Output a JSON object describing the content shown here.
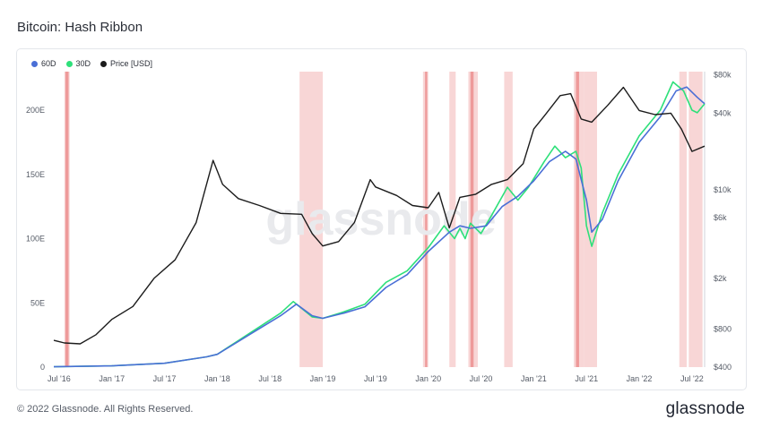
{
  "page": {
    "title": "Bitcoin: Hash Ribbon",
    "copyright": "© 2022 Glassnode. All Rights Reserved.",
    "brand": "glassnode",
    "watermark": "glassnode"
  },
  "colors": {
    "hr60": "#4a6fd6",
    "hr30": "#2ee07a",
    "price": "#1c1c1c",
    "band_light": "#f8d6d6",
    "band_dark": "#ee9a9a"
  },
  "chart_data": {
    "type": "line",
    "title": "Bitcoin: Hash Ribbon",
    "left_axis": {
      "ticks": [
        0,
        50,
        100,
        150,
        200
      ],
      "tick_labels": [
        "0",
        "50E",
        "100E",
        "150E",
        "200E"
      ],
      "ylim": [
        0,
        230
      ]
    },
    "right_axis": {
      "scale": "log",
      "ticks": [
        400,
        800,
        2000,
        6000,
        10000,
        40000,
        80000
      ],
      "tick_labels": [
        "$400",
        "$800",
        "$2k",
        "$6k",
        "$10k",
        "$40k",
        "$80k"
      ],
      "ylim": [
        400,
        85000
      ]
    },
    "x_ticks": [
      "Jul '16",
      "Jan '17",
      "Jul '17",
      "Jan '18",
      "Jul '18",
      "Jan '19",
      "Jul '19",
      "Jan '20",
      "Jul '20",
      "Jan '21",
      "Jul '21",
      "Jan '22",
      "Jul '22"
    ],
    "x_tick_values": [
      2016.5,
      2017.0,
      2017.5,
      2018.0,
      2018.5,
      2019.0,
      2019.5,
      2020.0,
      2020.5,
      2021.0,
      2021.5,
      2022.0,
      2022.5
    ],
    "xlim": [
      2016.45,
      2022.62
    ],
    "legend": [
      "60D",
      "30D",
      "Price [USD]"
    ],
    "series": [
      {
        "name": "60D",
        "axis": "left",
        "x": [
          2016.45,
          2017.0,
          2017.5,
          2017.9,
          2018.0,
          2018.3,
          2018.6,
          2018.75,
          2018.9,
          2019.0,
          2019.2,
          2019.4,
          2019.6,
          2019.8,
          2020.0,
          2020.2,
          2020.3,
          2020.4,
          2020.55,
          2020.7,
          2020.85,
          2021.0,
          2021.15,
          2021.3,
          2021.4,
          2021.5,
          2021.55,
          2021.65,
          2021.8,
          2022.0,
          2022.2,
          2022.35,
          2022.45,
          2022.55,
          2022.62
        ],
        "values": [
          0.3,
          1,
          3,
          8,
          10,
          25,
          40,
          49,
          40,
          38,
          42,
          47,
          62,
          72,
          90,
          105,
          110,
          108,
          110,
          125,
          133,
          145,
          160,
          168,
          162,
          130,
          105,
          115,
          145,
          175,
          195,
          215,
          218,
          210,
          205
        ]
      },
      {
        "name": "30D",
        "axis": "left",
        "x": [
          2016.45,
          2017.0,
          2017.5,
          2017.9,
          2018.0,
          2018.3,
          2018.6,
          2018.72,
          2018.9,
          2019.0,
          2019.2,
          2019.4,
          2019.6,
          2019.8,
          2020.0,
          2020.15,
          2020.25,
          2020.3,
          2020.35,
          2020.4,
          2020.5,
          2020.6,
          2020.75,
          2020.85,
          2020.95,
          2021.1,
          2021.2,
          2021.3,
          2021.4,
          2021.45,
          2021.5,
          2021.55,
          2021.65,
          2021.8,
          2022.0,
          2022.2,
          2022.32,
          2022.42,
          2022.5,
          2022.55,
          2022.62
        ],
        "values": [
          0.3,
          1,
          3,
          8,
          10,
          26,
          42,
          51,
          39,
          38,
          43,
          49,
          66,
          75,
          93,
          110,
          100,
          108,
          100,
          112,
          104,
          118,
          140,
          130,
          140,
          160,
          172,
          163,
          168,
          155,
          110,
          94,
          120,
          150,
          180,
          200,
          222,
          215,
          200,
          198,
          205
        ]
      },
      {
        "name": "Price [USD]",
        "axis": "right",
        "x": [
          2016.45,
          2016.55,
          2016.7,
          2016.85,
          2017.0,
          2017.2,
          2017.4,
          2017.6,
          2017.8,
          2017.96,
          2018.05,
          2018.2,
          2018.4,
          2018.6,
          2018.8,
          2018.9,
          2019.0,
          2019.15,
          2019.3,
          2019.45,
          2019.5,
          2019.7,
          2019.85,
          2020.0,
          2020.1,
          2020.2,
          2020.3,
          2020.45,
          2020.6,
          2020.75,
          2020.9,
          2021.0,
          2021.1,
          2021.25,
          2021.35,
          2021.45,
          2021.55,
          2021.7,
          2021.85,
          2022.0,
          2022.15,
          2022.3,
          2022.4,
          2022.5,
          2022.62
        ],
        "values": [
          650,
          620,
          610,
          720,
          950,
          1200,
          2000,
          2800,
          5500,
          17000,
          11000,
          8500,
          7500,
          6500,
          6400,
          4500,
          3600,
          3900,
          5500,
          12000,
          10500,
          9000,
          7500,
          7200,
          9500,
          5000,
          8700,
          9200,
          11000,
          12000,
          16000,
          30000,
          38000,
          55000,
          57000,
          36000,
          34000,
          46000,
          64000,
          42000,
          39000,
          40000,
          30000,
          20000,
          22000
        ]
      }
    ],
    "shaded_bands": [
      [
        2016.55,
        2016.6
      ],
      [
        2018.78,
        2019.0
      ],
      [
        2019.95,
        2020.0
      ],
      [
        2020.2,
        2020.26
      ],
      [
        2020.38,
        2020.47
      ],
      [
        2020.72,
        2020.8
      ],
      [
        2021.38,
        2021.48
      ],
      [
        2021.48,
        2021.6
      ],
      [
        2022.38,
        2022.45
      ],
      [
        2022.47,
        2022.6
      ]
    ],
    "dark_bands": [
      [
        2016.56,
        2016.59
      ],
      [
        2019.97,
        2019.99
      ],
      [
        2020.4,
        2020.43
      ],
      [
        2021.4,
        2021.43
      ]
    ]
  }
}
